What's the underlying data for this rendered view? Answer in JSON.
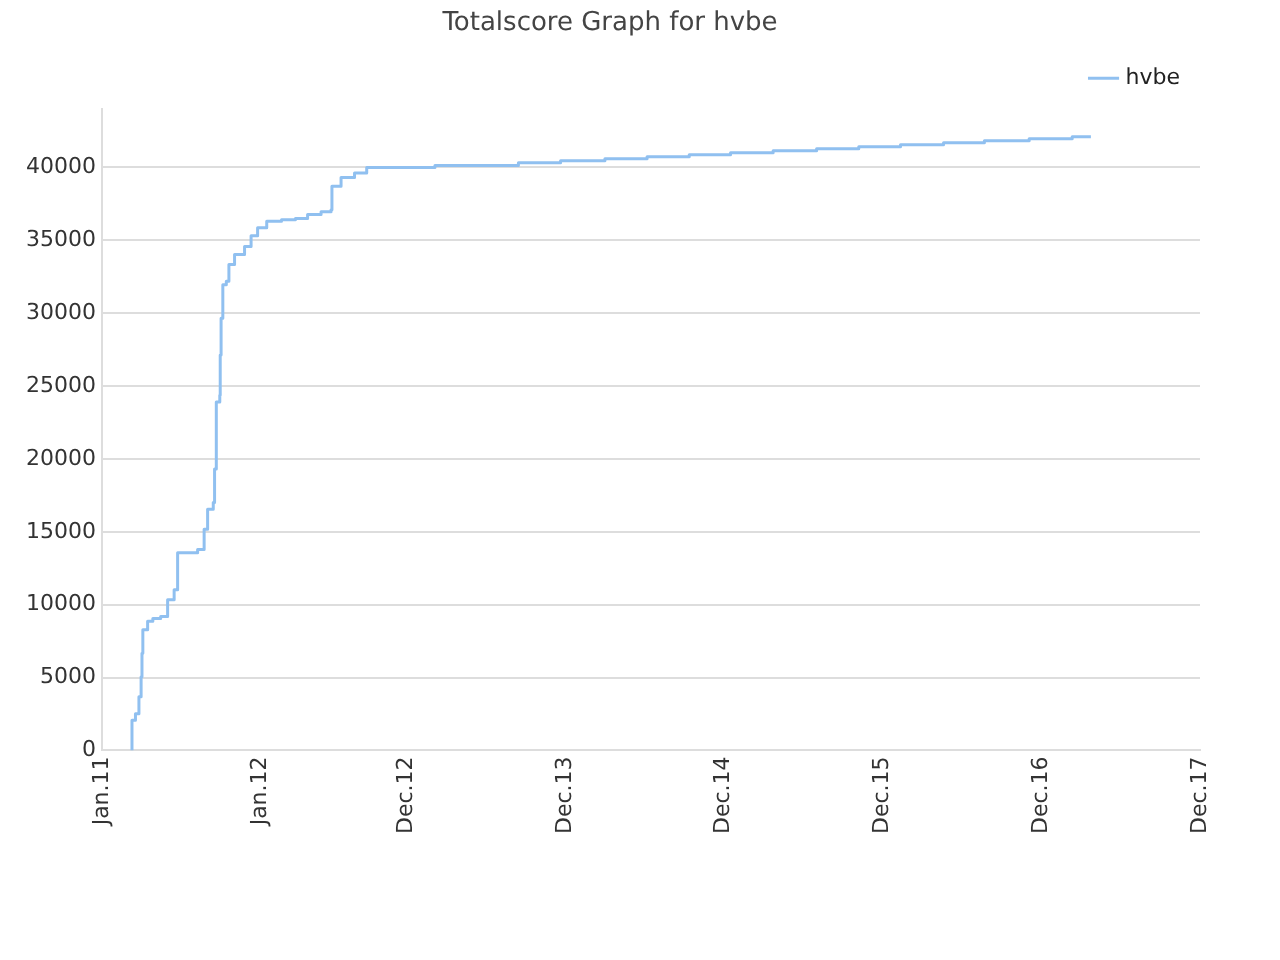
{
  "chart_data": {
    "type": "step",
    "title": "Totalscore Graph for hvbe",
    "x": [
      "2011-03-11",
      "2011-03-19",
      "2011-03-27",
      "2011-04-01",
      "2011-04-03",
      "2011-04-05",
      "2011-04-16",
      "2011-04-28",
      "2011-05-16",
      "2011-06-01",
      "2011-06-16",
      "2011-06-24",
      "2011-08-09",
      "2011-08-24",
      "2011-09-01",
      "2011-09-14",
      "2011-09-17",
      "2011-09-21",
      "2011-09-29",
      "2011-09-30",
      "2011-10-02",
      "2011-10-06",
      "2011-10-14",
      "2011-10-20",
      "2011-11-02",
      "2011-11-25",
      "2011-12-10",
      "2011-12-25",
      "2012-01-15",
      "2012-02-18",
      "2012-03-21",
      "2012-04-18",
      "2012-05-19",
      "2012-06-11",
      "2012-06-13",
      "2012-07-04",
      "2012-08-04",
      "2012-09-01",
      "2013-02-05",
      "2013-08-16",
      "2013-11-21",
      "2014-03-03",
      "2014-06-08",
      "2014-09-13",
      "2014-12-17",
      "2015-03-25",
      "2015-07-03",
      "2015-10-08",
      "2016-01-12",
      "2016-04-20",
      "2016-07-23",
      "2016-11-03",
      "2017-02-10",
      "2017-03-25"
    ],
    "series": [
      {
        "name": "hvbe",
        "color": "#90c0f0",
        "values": [
          0,
          2070,
          2520,
          3680,
          5060,
          6670,
          8280,
          8870,
          9050,
          9190,
          10340,
          11030,
          13560,
          13790,
          15170,
          16550,
          17010,
          19310,
          23910,
          24370,
          27130,
          29660,
          31960,
          32190,
          33340,
          34030,
          34580,
          35310,
          35860,
          36320,
          36410,
          36500,
          36780,
          36960,
          37100,
          38710,
          39310,
          39630,
          40000,
          40140,
          40320,
          40460,
          40600,
          40740,
          40870,
          41010,
          41150,
          41290,
          41420,
          41560,
          41700,
          41840,
          41980,
          42110
        ]
      }
    ],
    "xlim": [
      "2011-01-01",
      "2017-12-01"
    ],
    "xticks": [
      {
        "value": "2011-01-01",
        "label": "Jan.11"
      },
      {
        "value": "2012-01-01",
        "label": "Jan.12"
      },
      {
        "value": "2012-12-01",
        "label": "Dec.12"
      },
      {
        "value": "2013-12-01",
        "label": "Dec.13"
      },
      {
        "value": "2014-12-01",
        "label": "Dec.14"
      },
      {
        "value": "2015-12-01",
        "label": "Dec.15"
      },
      {
        "value": "2016-12-01",
        "label": "Dec.16"
      },
      {
        "value": "2017-12-01",
        "label": "Dec.17"
      }
    ],
    "ylim": [
      0,
      44000
    ],
    "yticks": [
      0,
      5000,
      10000,
      15000,
      20000,
      25000,
      30000,
      35000,
      40000
    ],
    "grid": "y",
    "legend": "top right",
    "marker": "none",
    "line_style": "solid"
  }
}
